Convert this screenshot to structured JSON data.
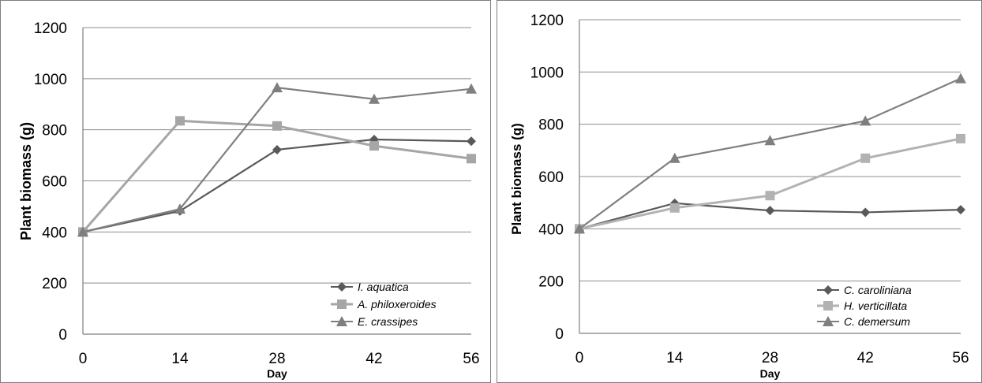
{
  "chart_data": [
    {
      "type": "line",
      "title": "",
      "xlabel": "Day",
      "ylabel": "Plant biomass (g)",
      "x": [
        0,
        14,
        28,
        42,
        56
      ],
      "ylim": [
        0,
        1200
      ],
      "yticks": [
        0,
        200,
        400,
        600,
        800,
        1000,
        1200
      ],
      "grid": true,
      "legend_position": "bottom-right",
      "series": [
        {
          "name": "I. aquatica",
          "values": [
            400,
            482,
            722,
            762,
            755
          ],
          "color": "#595959",
          "marker": "diamond"
        },
        {
          "name": "A. philoxeroides",
          "values": [
            400,
            835,
            815,
            737,
            687
          ],
          "color": "#a6a6a6",
          "marker": "square"
        },
        {
          "name": "E. crassipes",
          "values": [
            400,
            490,
            965,
            920,
            960
          ],
          "color": "#7f7f7f",
          "marker": "triangle"
        }
      ]
    },
    {
      "type": "line",
      "title": "",
      "xlabel": "Day",
      "ylabel": "Plant biomass (g)",
      "x": [
        0,
        14,
        28,
        42,
        56
      ],
      "ylim": [
        0,
        1200
      ],
      "yticks": [
        0,
        200,
        400,
        600,
        800,
        1000,
        1200
      ],
      "grid": true,
      "legend_position": "bottom-right",
      "series": [
        {
          "name": "C. caroliniana",
          "values": [
            400,
            498,
            470,
            463,
            473
          ],
          "color": "#595959",
          "marker": "diamond"
        },
        {
          "name": "H. verticillata",
          "values": [
            400,
            480,
            527,
            670,
            745
          ],
          "color": "#b2b2b2",
          "marker": "square"
        },
        {
          "name": "C. demersum",
          "values": [
            400,
            670,
            738,
            813,
            975
          ],
          "color": "#7f7f7f",
          "marker": "triangle"
        }
      ]
    }
  ]
}
